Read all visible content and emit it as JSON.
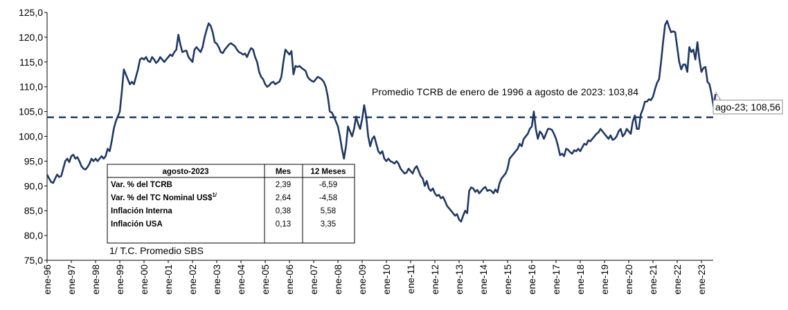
{
  "chart_data": {
    "type": "line",
    "categories": [
      "ene-96",
      null,
      null,
      null,
      null,
      null,
      null,
      null,
      null,
      null,
      null,
      null,
      "ene-97",
      null,
      null,
      null,
      null,
      null,
      null,
      null,
      null,
      null,
      null,
      null,
      "ene-98",
      null,
      null,
      null,
      null,
      null,
      null,
      null,
      null,
      null,
      null,
      null,
      "ene-99",
      null,
      null,
      null,
      null,
      null,
      null,
      null,
      null,
      null,
      null,
      null,
      "ene-00",
      null,
      null,
      null,
      null,
      null,
      null,
      null,
      null,
      null,
      null,
      null,
      "ene-01",
      null,
      null,
      null,
      null,
      null,
      null,
      null,
      null,
      null,
      null,
      null,
      "ene-02",
      null,
      null,
      null,
      null,
      null,
      null,
      null,
      null,
      null,
      null,
      null,
      "ene-03",
      null,
      null,
      null,
      null,
      null,
      null,
      null,
      null,
      null,
      null,
      null,
      "ene-04",
      null,
      null,
      null,
      null,
      null,
      null,
      null,
      null,
      null,
      null,
      null,
      "ene-05",
      null,
      null,
      null,
      null,
      null,
      null,
      null,
      null,
      null,
      null,
      null,
      "ene-06",
      null,
      null,
      null,
      null,
      null,
      null,
      null,
      null,
      null,
      null,
      null,
      "ene-07",
      null,
      null,
      null,
      null,
      null,
      null,
      null,
      null,
      null,
      null,
      null,
      "ene-08",
      null,
      null,
      null,
      null,
      null,
      null,
      null,
      null,
      null,
      null,
      null,
      "ene-09",
      null,
      null,
      null,
      null,
      null,
      null,
      null,
      null,
      null,
      null,
      null,
      "ene-10",
      null,
      null,
      null,
      null,
      null,
      null,
      null,
      null,
      null,
      null,
      null,
      "ene-11",
      null,
      null,
      null,
      null,
      null,
      null,
      null,
      null,
      null,
      null,
      null,
      "ene-12",
      null,
      null,
      null,
      null,
      null,
      null,
      null,
      null,
      null,
      null,
      null,
      "ene-13",
      null,
      null,
      null,
      null,
      null,
      null,
      null,
      null,
      null,
      null,
      null,
      "ene-14",
      null,
      null,
      null,
      null,
      null,
      null,
      null,
      null,
      null,
      null,
      null,
      "ene-15",
      null,
      null,
      null,
      null,
      null,
      null,
      null,
      null,
      null,
      null,
      null,
      "ene-16",
      null,
      null,
      null,
      null,
      null,
      null,
      null,
      null,
      null,
      null,
      null,
      "ene-17",
      null,
      null,
      null,
      null,
      null,
      null,
      null,
      null,
      null,
      null,
      null,
      "ene-18",
      null,
      null,
      null,
      null,
      null,
      null,
      null,
      null,
      null,
      null,
      null,
      "ene-19",
      null,
      null,
      null,
      null,
      null,
      null,
      null,
      null,
      null,
      null,
      null,
      "ene-20",
      null,
      null,
      null,
      null,
      null,
      null,
      null,
      null,
      null,
      null,
      null,
      "ene-21",
      null,
      null,
      null,
      null,
      null,
      null,
      null,
      null,
      null,
      null,
      null,
      "ene-22",
      null,
      null,
      null,
      null,
      null,
      null,
      null,
      null,
      null,
      null,
      null,
      "ene-23",
      null,
      null,
      null,
      null,
      null,
      null,
      null
    ],
    "series": [
      {
        "color": "#1f3864",
        "values": [
          92.3,
          91.5,
          90.8,
          90.6,
          91.5,
          92.3,
          91.8,
          92.0,
          93.5,
          95.0,
          95.5,
          94.8,
          96.0,
          96.3,
          95.5,
          95.8,
          95.0,
          94.0,
          93.5,
          93.3,
          93.8,
          94.5,
          95.5,
          95.0,
          95.5,
          95.0,
          95.5,
          96.0,
          95.5,
          96.0,
          97.5,
          97.0,
          99.0,
          101.5,
          103.0,
          104.0,
          105.0,
          109.0,
          113.5,
          112.5,
          111.5,
          110.5,
          111.0,
          110.5,
          112.0,
          113.5,
          115.5,
          115.8,
          115.5,
          116.0,
          115.2,
          115.0,
          116.0,
          115.5,
          114.8,
          115.2,
          116.0,
          115.5,
          115.0,
          115.5,
          116.0,
          116.5,
          116.2,
          117.0,
          117.5,
          120.5,
          118.5,
          117.0,
          117.2,
          117.3,
          116.0,
          115.5,
          115.0,
          117.5,
          118.0,
          117.5,
          117.0,
          118.0,
          120.0,
          121.5,
          122.8,
          122.3,
          121.0,
          119.0,
          118.7,
          118.0,
          117.0,
          116.8,
          117.5,
          118.0,
          118.5,
          118.8,
          118.5,
          118.2,
          117.5,
          117.0,
          116.8,
          116.5,
          116.7,
          116.0,
          117.0,
          117.8,
          117.5,
          116.0,
          115.0,
          113.0,
          112.0,
          111.5,
          110.5,
          110.0,
          110.3,
          110.8,
          111.0,
          110.5,
          110.8,
          111.0,
          112.0,
          115.0,
          117.5,
          117.0,
          116.5,
          117.2,
          112.5,
          114.2,
          114.0,
          114.2,
          113.8,
          113.5,
          113.2,
          112.0,
          111.5,
          111.2,
          111.0,
          111.5,
          112.0,
          111.8,
          111.5,
          111.0,
          110.0,
          108.0,
          105.0,
          104.8,
          104.0,
          103.0,
          102.0,
          100.0,
          97.5,
          95.5,
          98.0,
          102.0,
          101.0,
          100.0,
          101.5,
          104.0,
          102.5,
          101.5,
          103.5,
          106.3,
          104.0,
          100.0,
          98.0,
          99.5,
          100.0,
          98.5,
          97.0,
          96.5,
          97.0,
          95.5,
          95.0,
          95.5,
          95.0,
          94.8,
          94.5,
          95.0,
          94.5,
          93.5,
          93.0,
          92.5,
          92.7,
          93.5,
          93.0,
          92.5,
          93.5,
          94.0,
          93.0,
          92.0,
          91.5,
          90.0,
          91.0,
          89.5,
          89.0,
          89.5,
          88.5,
          88.0,
          88.2,
          87.5,
          87.8,
          87.0,
          86.0,
          85.5,
          85.0,
          84.5,
          84.0,
          84.3,
          83.2,
          82.8,
          84.0,
          85.0,
          84.5,
          89.0,
          89.7,
          89.5,
          88.8,
          89.2,
          88.5,
          89.0,
          89.5,
          89.8,
          89.0,
          89.2,
          89.0,
          88.5,
          89.3,
          88.7,
          90.5,
          91.5,
          92.0,
          92.5,
          93.5,
          95.5,
          96.0,
          96.5,
          97.0,
          97.5,
          98.5,
          98.0,
          99.5,
          100.0,
          100.5,
          101.5,
          102.0,
          105.0,
          101.5,
          99.5,
          101.0,
          100.5,
          99.5,
          100.5,
          101.5,
          101.5,
          101.3,
          100.5,
          99.5,
          98.0,
          96.2,
          96.5,
          96.0,
          97.5,
          97.3,
          96.8,
          96.5,
          97.2,
          97.0,
          97.5,
          97.0,
          97.8,
          98.5,
          98.3,
          99.2,
          99.0,
          99.5,
          100.0,
          100.5,
          100.8,
          101.5,
          101.0,
          100.5,
          100.0,
          99.5,
          100.2,
          99.3,
          99.5,
          100.0,
          101.0,
          101.5,
          100.0,
          100.5,
          101.5,
          101.0,
          100.5,
          103.0,
          104.2,
          101.5,
          101.5,
          104.5,
          105.5,
          107.0,
          107.0,
          107.5,
          107.3,
          108.0,
          109.5,
          110.8,
          111.5,
          115.0,
          119.0,
          122.5,
          123.3,
          122.0,
          121.0,
          121.2,
          121.0,
          118.0,
          115.0,
          113.5,
          114.5,
          114.5,
          113.0,
          118.0,
          117.0,
          117.5,
          115.5,
          119.0,
          115.5,
          113.0,
          113.8,
          114.0,
          111.0,
          110.5,
          108.5,
          106.0,
          108.56
        ]
      }
    ],
    "ylim": [
      75,
      125
    ],
    "yticks": [
      {
        "value": 75,
        "label": "75,0"
      },
      {
        "value": 80,
        "label": "80,0"
      },
      {
        "value": 85,
        "label": "85,0"
      },
      {
        "value": 90,
        "label": "90,0"
      },
      {
        "value": 95,
        "label": "95,0"
      },
      {
        "value": 100,
        "label": "100,0"
      },
      {
        "value": 105,
        "label": "105,0"
      },
      {
        "value": 110,
        "label": "110,0"
      },
      {
        "value": 115,
        "label": "115,0"
      },
      {
        "value": 120,
        "label": "120,0"
      },
      {
        "value": 125,
        "label": "125,0"
      }
    ],
    "average_line": {
      "value": 103.84,
      "label": "Promedio TCRB de enero de 1996 a agosto de 2023: 103,84",
      "color": "#1f3864"
    },
    "last_point_label": "ago-23; 108,56"
  },
  "table": {
    "header": [
      "agosto-2023",
      "Mes",
      "12 Meses"
    ],
    "rows": [
      [
        {
          "text": "Var. % del TCRB"
        },
        "2,39",
        "-6,59"
      ],
      [
        {
          "text": "Var. % del TC Nominal US$",
          "sup": "1/"
        },
        "2,64",
        "-4,58"
      ],
      [
        {
          "text": "Inflación Interna"
        },
        "0,38",
        "5,58"
      ],
      [
        {
          "text": "Inflación USA"
        },
        "0,13",
        "3,35"
      ]
    ],
    "footnote": "1/ T.C. Promedio SBS"
  }
}
